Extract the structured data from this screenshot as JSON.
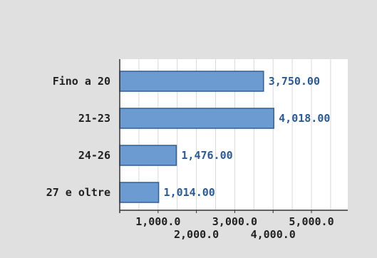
{
  "chart_data": {
    "type": "bar",
    "orientation": "horizontal",
    "title": "",
    "xlabel": "",
    "ylabel": "",
    "categories": [
      "Fino a 20",
      "21-23",
      "24-26",
      "27 e oltre"
    ],
    "values": [
      3750.0,
      4018.0,
      1476.0,
      1014.0
    ],
    "value_labels": [
      "3,750.00",
      "4,018.00",
      "1,476.00",
      "1,014.00"
    ],
    "xlim": [
      0,
      6000
    ],
    "x_ticks": [
      1000,
      2000,
      3000,
      4000,
      5000
    ],
    "x_tick_labels": [
      "1,000.0",
      "2,000.0",
      "3,000.0",
      "4,000.0",
      "5,000.0"
    ],
    "grid": "vertical",
    "legend": "none",
    "colors": {
      "bar_fill": "#6b9bd0",
      "bar_edge": "#2f5f96",
      "value_text": "#2a5a99",
      "grid": "#d8d8d8",
      "background": "#e0e0e0",
      "plot_background": "#ffffff"
    }
  }
}
